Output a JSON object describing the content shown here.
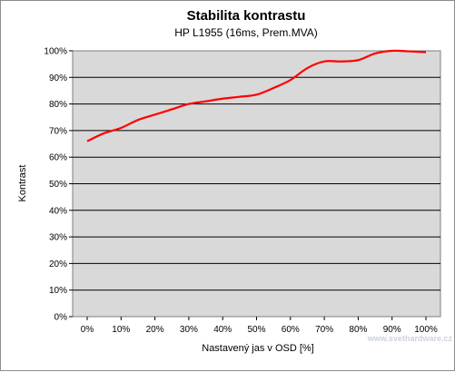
{
  "chart_data": {
    "type": "line",
    "title": "Stabilita kontrastu",
    "subtitle": "HP L1955 (16ms, Prem.MVA)",
    "xlabel": "Nastavený jas v OSD [%]",
    "ylabel": "Kontrast",
    "categories": [
      "0%",
      "10%",
      "20%",
      "30%",
      "40%",
      "50%",
      "60%",
      "70%",
      "80%",
      "90%",
      "100%"
    ],
    "x": [
      0,
      5,
      10,
      15,
      20,
      25,
      30,
      35,
      40,
      45,
      50,
      55,
      60,
      65,
      70,
      75,
      80,
      85,
      90,
      95,
      100
    ],
    "values": [
      66,
      69,
      71,
      74,
      76,
      78,
      80,
      81,
      82,
      82.7,
      83.5,
      86,
      89,
      93.5,
      96,
      96,
      96.5,
      99,
      100,
      99.8,
      99.5
    ],
    "yticks": [
      "0%",
      "10%",
      "20%",
      "30%",
      "40%",
      "50%",
      "60%",
      "70%",
      "80%",
      "90%",
      "100%"
    ],
    "ylim": [
      0,
      100
    ],
    "xlim": [
      0,
      100
    ],
    "grid": true,
    "legend": "none",
    "colors": {
      "line": "#ff0000",
      "plot_bg": "#d9d9d9",
      "grid": "#000000",
      "page_bg": "#ffffff"
    }
  },
  "watermark": "www.svethardware.cz"
}
